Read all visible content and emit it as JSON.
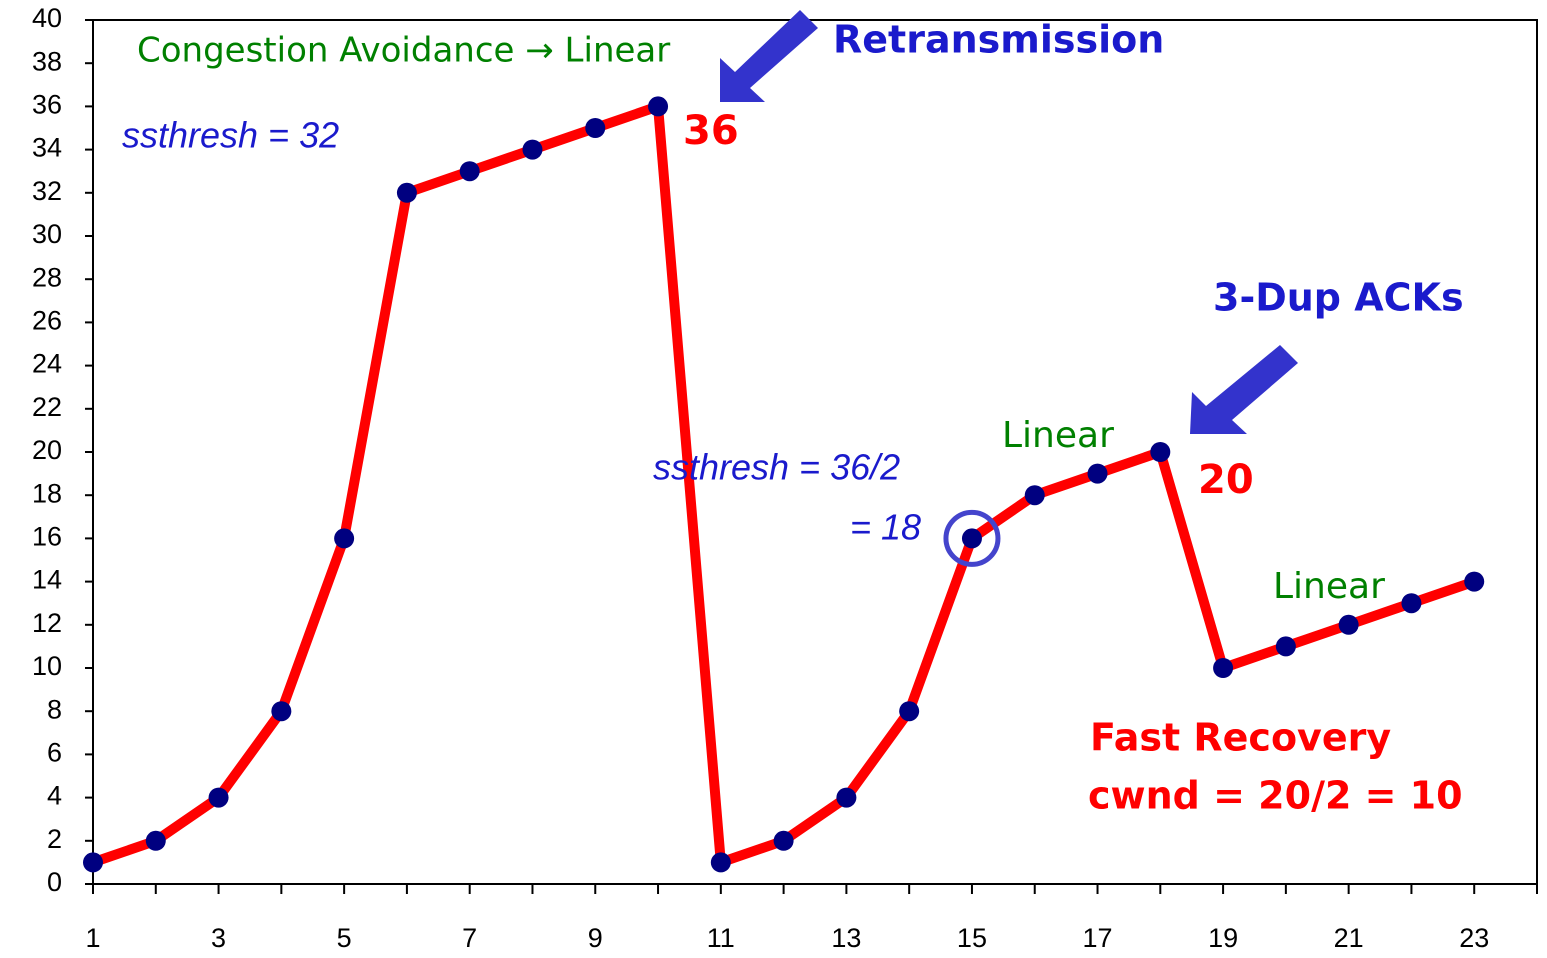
{
  "chart_data": {
    "type": "line",
    "x": [
      1,
      2,
      3,
      4,
      5,
      6,
      7,
      8,
      9,
      10,
      11,
      12,
      13,
      14,
      15,
      16,
      17,
      18,
      19,
      20,
      21,
      22,
      23
    ],
    "series": [
      {
        "color": "#ff0000",
        "marker_color": "#000080",
        "values": [
          1,
          2,
          4,
          8,
          16,
          32,
          33,
          34,
          35,
          36,
          1,
          2,
          4,
          8,
          16,
          18,
          19,
          20,
          10,
          11,
          12,
          13,
          14
        ]
      }
    ],
    "xlim": [
      1,
      24
    ],
    "xticks": [
      1,
      3,
      5,
      7,
      9,
      11,
      13,
      15,
      17,
      19,
      21,
      23
    ],
    "xminor_ticks": [
      2,
      4,
      6,
      8,
      10,
      12,
      14,
      16,
      18,
      20,
      22,
      24
    ],
    "ylim": [
      0,
      40
    ],
    "yticks": [
      0,
      2,
      4,
      6,
      8,
      10,
      12,
      14,
      16,
      18,
      20,
      22,
      24,
      26,
      28,
      30,
      32,
      34,
      36,
      38,
      40
    ],
    "grid": false,
    "annotations": [
      {
        "text": "Congestion Avoidance → Linear",
        "color": "#008000"
      },
      {
        "text": "ssthresh = 32",
        "color": "#1a1acc"
      },
      {
        "text": "Retransmission",
        "color": "#1a1acc"
      },
      {
        "text": "36",
        "color": "#ff0000"
      },
      {
        "text": "3-Dup ACKs",
        "color": "#1a1acc"
      },
      {
        "text": "Linear",
        "color": "#008000"
      },
      {
        "text": "20",
        "color": "#ff0000"
      },
      {
        "text": "ssthresh = 36/2",
        "color": "#1a1acc"
      },
      {
        "text": "= 18",
        "color": "#1a1acc"
      },
      {
        "text": "Linear",
        "color": "#008000"
      },
      {
        "text": "Fast Recovery",
        "color": "#ff0000"
      },
      {
        "text": "cwnd = 20/2 = 10",
        "color": "#ff0000"
      }
    ]
  }
}
